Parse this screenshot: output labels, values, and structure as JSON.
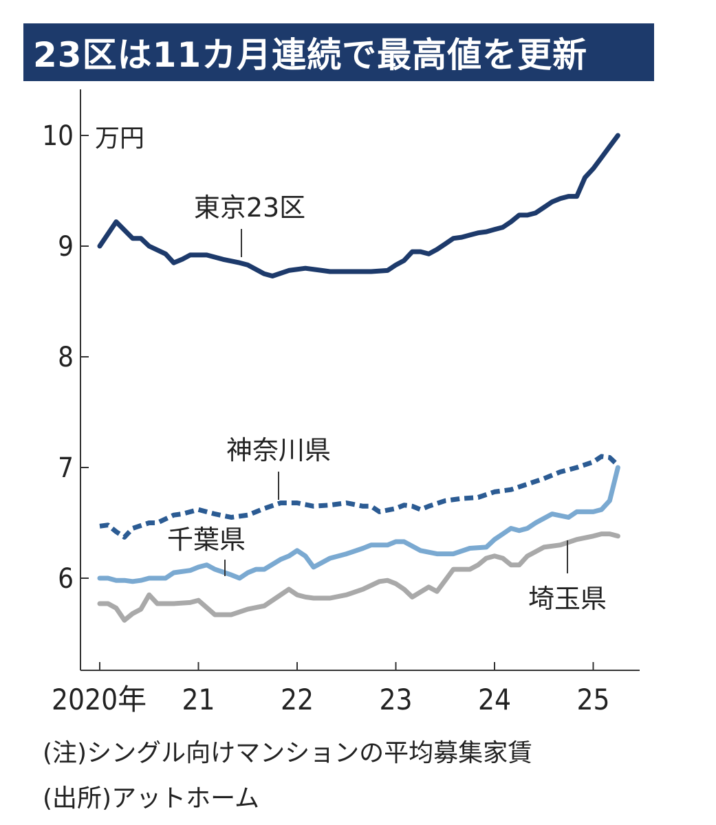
{
  "title": "23区は11カ月連続で最高値を更新",
  "notes": {
    "note": "(注)シングル向けマンションの平均募集家賃",
    "source": "(出所)アットホーム"
  },
  "chart_data": {
    "type": "line",
    "y_unit": "万円",
    "ylim": [
      5.4,
      10.4
    ],
    "y_ticks": [
      6,
      7,
      8,
      9,
      10
    ],
    "x_range": [
      "2020-01",
      "2025-05"
    ],
    "x_ticks": [
      {
        "value": "2020-01",
        "label": "2020年"
      },
      {
        "value": "2021-01",
        "label": "21"
      },
      {
        "value": "2022-01",
        "label": "22"
      },
      {
        "value": "2023-01",
        "label": "23"
      },
      {
        "value": "2024-01",
        "label": "24"
      },
      {
        "value": "2025-01",
        "label": "25"
      }
    ],
    "grid": false,
    "legend": "inline labels",
    "series": [
      {
        "name": "東京23区",
        "color": "#1d3a6b",
        "style": "solid",
        "x": [
          "2020-01",
          "2020-03",
          "2020-05",
          "2020-06",
          "2020-07",
          "2020-09",
          "2020-10",
          "2020-11",
          "2020-12",
          "2021-02",
          "2021-04",
          "2021-06",
          "2021-07",
          "2021-09",
          "2021-10",
          "2021-12",
          "2022-02",
          "2022-04",
          "2022-05",
          "2022-08",
          "2022-10",
          "2022-12",
          "2023-01",
          "2023-02",
          "2023-03",
          "2023-04",
          "2023-05",
          "2023-06",
          "2023-07",
          "2023-08",
          "2023-09",
          "2023-10",
          "2023-11",
          "2023-12",
          "2024-01",
          "2024-02",
          "2024-03",
          "2024-04",
          "2024-05",
          "2024-06",
          "2024-07",
          "2024-08",
          "2024-09",
          "2024-10",
          "2024-11",
          "2024-12",
          "2025-01",
          "2025-02",
          "2025-03",
          "2025-04"
        ],
        "values": [
          9.0,
          9.22,
          9.07,
          9.07,
          9.0,
          8.93,
          8.85,
          8.88,
          8.92,
          8.92,
          8.88,
          8.85,
          8.83,
          8.75,
          8.73,
          8.78,
          8.8,
          8.78,
          8.77,
          8.77,
          8.77,
          8.78,
          8.83,
          8.87,
          8.95,
          8.95,
          8.93,
          8.97,
          9.02,
          9.07,
          9.08,
          9.1,
          9.12,
          9.13,
          9.15,
          9.17,
          9.22,
          9.28,
          9.28,
          9.3,
          9.35,
          9.4,
          9.43,
          9.45,
          9.45,
          9.62,
          9.7,
          9.8,
          9.9,
          10.0
        ]
      },
      {
        "name": "神奈川県",
        "color": "#2b5b93",
        "style": "dashed",
        "x": [
          "2020-01",
          "2020-02",
          "2020-03",
          "2020-04",
          "2020-05",
          "2020-07",
          "2020-08",
          "2020-10",
          "2020-11",
          "2021-01",
          "2021-03",
          "2021-05",
          "2021-07",
          "2021-09",
          "2021-11",
          "2022-01",
          "2022-03",
          "2022-05",
          "2022-07",
          "2022-09",
          "2022-10",
          "2022-11",
          "2023-01",
          "2023-02",
          "2023-03",
          "2023-04",
          "2023-05",
          "2023-07",
          "2023-09",
          "2023-11",
          "2024-01",
          "2024-03",
          "2024-05",
          "2024-07",
          "2024-09",
          "2024-11",
          "2025-01",
          "2025-02",
          "2025-03",
          "2025-04"
        ],
        "values": [
          6.47,
          6.48,
          6.42,
          6.37,
          6.45,
          6.5,
          6.5,
          6.57,
          6.58,
          6.62,
          6.58,
          6.55,
          6.57,
          6.63,
          6.68,
          6.68,
          6.65,
          6.66,
          6.68,
          6.65,
          6.65,
          6.6,
          6.63,
          6.66,
          6.65,
          6.62,
          6.65,
          6.7,
          6.72,
          6.73,
          6.78,
          6.8,
          6.85,
          6.9,
          6.96,
          7.0,
          7.05,
          7.1,
          7.09,
          7.02
        ]
      },
      {
        "name": "千葉県",
        "color": "#7aa9d1",
        "style": "solid",
        "x": [
          "2020-01",
          "2020-02",
          "2020-03",
          "2020-04",
          "2020-05",
          "2020-06",
          "2020-07",
          "2020-09",
          "2020-10",
          "2020-12",
          "2021-01",
          "2021-02",
          "2021-03",
          "2021-05",
          "2021-06",
          "2021-07",
          "2021-08",
          "2021-09",
          "2021-11",
          "2021-12",
          "2022-01",
          "2022-02",
          "2022-03",
          "2022-05",
          "2022-07",
          "2022-09",
          "2022-10",
          "2022-11",
          "2022-12",
          "2023-01",
          "2023-02",
          "2023-04",
          "2023-06",
          "2023-08",
          "2023-10",
          "2023-12",
          "2024-01",
          "2024-02",
          "2024-03",
          "2024-04",
          "2024-05",
          "2024-06",
          "2024-08",
          "2024-10",
          "2024-11",
          "2025-01",
          "2025-02",
          "2025-03",
          "2025-04"
        ],
        "values": [
          6.0,
          6.0,
          5.98,
          5.98,
          5.97,
          5.98,
          6.0,
          6.0,
          6.05,
          6.07,
          6.1,
          6.12,
          6.08,
          6.03,
          6.0,
          6.05,
          6.08,
          6.08,
          6.17,
          6.2,
          6.25,
          6.2,
          6.1,
          6.18,
          6.22,
          6.27,
          6.3,
          6.3,
          6.3,
          6.33,
          6.33,
          6.25,
          6.22,
          6.22,
          6.27,
          6.28,
          6.35,
          6.4,
          6.45,
          6.43,
          6.45,
          6.5,
          6.58,
          6.55,
          6.6,
          6.6,
          6.62,
          6.7,
          7.0
        ]
      },
      {
        "name": "埼玉県",
        "color": "#a9a9a9",
        "style": "solid",
        "x": [
          "2020-01",
          "2020-02",
          "2020-03",
          "2020-04",
          "2020-05",
          "2020-06",
          "2020-07",
          "2020-08",
          "2020-10",
          "2020-12",
          "2021-01",
          "2021-03",
          "2021-05",
          "2021-07",
          "2021-09",
          "2021-11",
          "2021-12",
          "2022-01",
          "2022-02",
          "2022-03",
          "2022-05",
          "2022-07",
          "2022-09",
          "2022-11",
          "2022-12",
          "2023-01",
          "2023-02",
          "2023-03",
          "2023-05",
          "2023-06",
          "2023-07",
          "2023-08",
          "2023-10",
          "2023-11",
          "2023-12",
          "2024-01",
          "2024-02",
          "2024-03",
          "2024-04",
          "2024-05",
          "2024-07",
          "2024-09",
          "2024-11",
          "2025-01",
          "2025-02",
          "2025-03",
          "2025-04"
        ],
        "values": [
          5.77,
          5.77,
          5.73,
          5.62,
          5.68,
          5.72,
          5.85,
          5.77,
          5.77,
          5.78,
          5.8,
          5.67,
          5.67,
          5.72,
          5.75,
          5.85,
          5.9,
          5.85,
          5.83,
          5.82,
          5.82,
          5.85,
          5.9,
          5.97,
          5.98,
          5.95,
          5.9,
          5.83,
          5.92,
          5.88,
          5.98,
          6.08,
          6.08,
          6.12,
          6.18,
          6.2,
          6.18,
          6.12,
          6.12,
          6.2,
          6.28,
          6.3,
          6.35,
          6.38,
          6.4,
          6.4,
          6.38
        ]
      }
    ]
  }
}
